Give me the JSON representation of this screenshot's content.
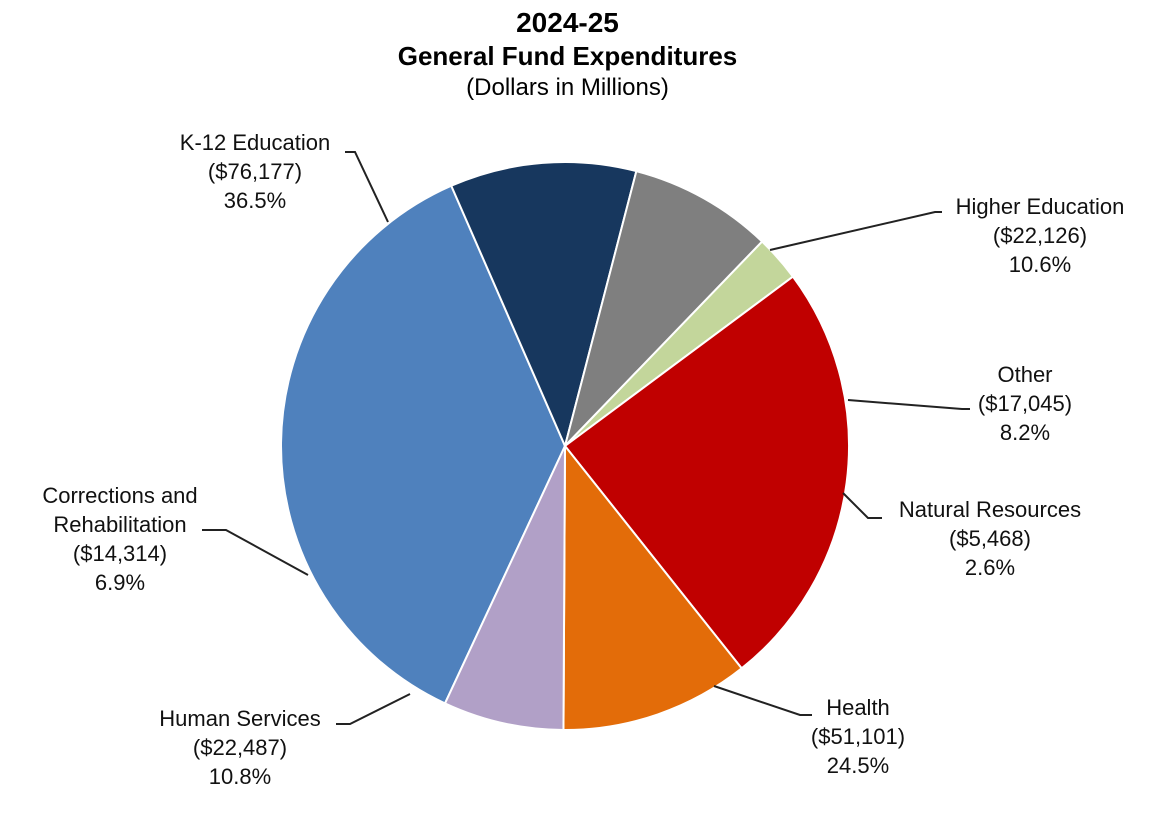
{
  "chart_data": {
    "type": "pie",
    "title": "2024-25",
    "subtitle": "General Fund Expenditures",
    "unit_note": "(Dollars in Millions)",
    "slices": [
      {
        "name": "K-12 Education",
        "amount": "($76,177)",
        "value": 76177,
        "percent": "36.5%",
        "color": "#4F81BD"
      },
      {
        "name": "Higher Education",
        "amount": "($22,126)",
        "value": 22126,
        "percent": "10.6%",
        "color": "#17375E"
      },
      {
        "name": "Other",
        "amount": "($17,045)",
        "value": 17045,
        "percent": "8.2%",
        "color": "#7F7F7F"
      },
      {
        "name": "Natural Resources",
        "amount": "($5,468)",
        "value": 5468,
        "percent": "2.6%",
        "color": "#C3D69B"
      },
      {
        "name": "Health",
        "amount": "($51,101)",
        "value": 51101,
        "percent": "24.5%",
        "color": "#C00000"
      },
      {
        "name": "Human Services",
        "amount": "($22,487)",
        "value": 22487,
        "percent": "10.8%",
        "color": "#E36C09"
      },
      {
        "name": "Corrections and Rehabilitation",
        "amount": "($14,314)",
        "value": 14314,
        "percent": "6.9%",
        "color": "#B1A0C7"
      }
    ],
    "legend": "none"
  }
}
